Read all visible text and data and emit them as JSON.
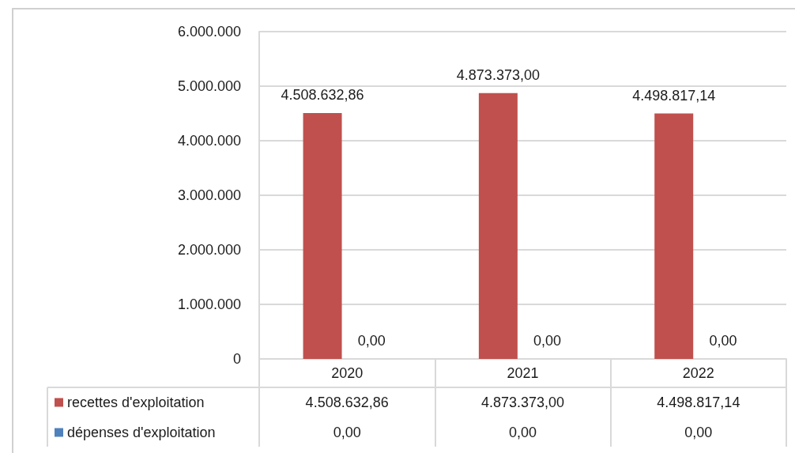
{
  "chart_data": {
    "type": "bar",
    "categories": [
      "2020",
      "2021",
      "2022"
    ],
    "series": [
      {
        "name": "recettes d'exploitation",
        "color": "#c0504d",
        "values": [
          4508632.86,
          4873373.0,
          4498817.14
        ],
        "value_labels": [
          "4.508.632,86",
          "4.873.373,00",
          "4.498.817,14"
        ]
      },
      {
        "name": "dépenses d'exploitation",
        "color": "#4f81bd",
        "values": [
          0,
          0,
          0
        ],
        "value_labels": [
          "0,00",
          "0,00",
          "0,00"
        ]
      }
    ],
    "ylim": [
      0,
      6000000
    ],
    "yticks": [
      0,
      {
        "value": 1000000,
        "label": "1.000.000"
      },
      {
        "value": 2000000,
        "label": "2.000.000"
      },
      {
        "value": 3000000,
        "label": "3.000.000"
      },
      {
        "value": 4000000,
        "label": "4.000.000"
      },
      {
        "value": 5000000,
        "label": "5.000.000"
      },
      {
        "value": 6000000,
        "label": "6.000.000"
      }
    ],
    "grid": "y",
    "legend": "bottom left"
  }
}
